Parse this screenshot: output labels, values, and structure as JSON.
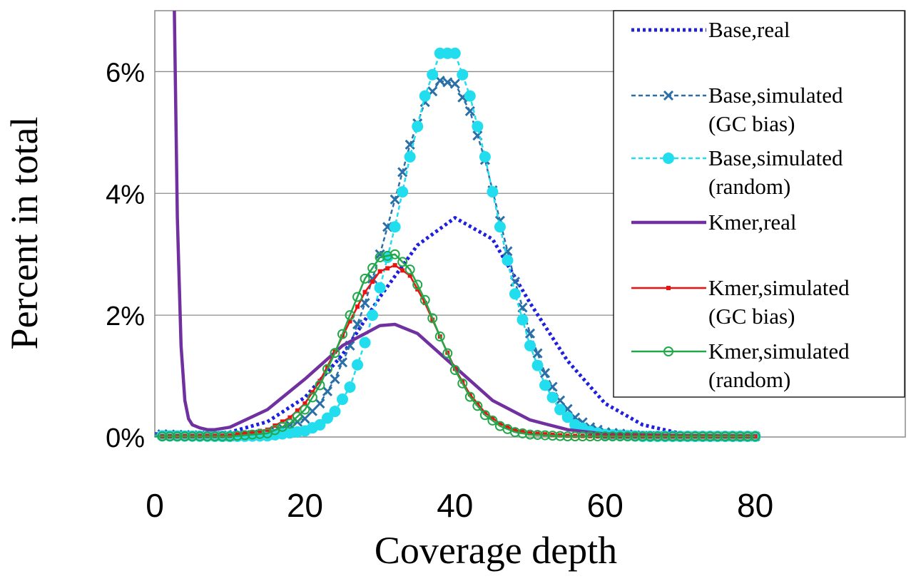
{
  "chart_data": {
    "type": "line",
    "title": "",
    "xlabel": "Coverage depth",
    "ylabel": "Percent in total",
    "xlim": [
      0,
      100
    ],
    "ylim": [
      0,
      7
    ],
    "x_ticks": [
      0,
      20,
      40,
      60,
      80
    ],
    "x_tick_labels": [
      "0",
      "20",
      "40",
      "60",
      "80"
    ],
    "y_ticks": [
      0,
      2,
      4,
      6
    ],
    "y_tick_labels": [
      "0%",
      "2%",
      "4%",
      "6%"
    ],
    "grid": true,
    "legend_position": "top-right",
    "series": [
      {
        "name": "Base,real",
        "legend_lines": [
          "Base,real"
        ],
        "color": "#1f1fe0",
        "style": "dotted",
        "marker": "none",
        "x": [
          0,
          5,
          10,
          15,
          20,
          25,
          30,
          35,
          40,
          45,
          50,
          55,
          60,
          65,
          70,
          75,
          80
        ],
        "y": [
          0.05,
          0.03,
          0.08,
          0.25,
          0.65,
          1.35,
          2.3,
          3.15,
          3.6,
          3.25,
          2.2,
          1.25,
          0.55,
          0.2,
          0.06,
          0.02,
          0.01
        ]
      },
      {
        "name": "Base,simulated (GC bias)",
        "legend_lines": [
          "Base,simulated",
          "(GC bias)"
        ],
        "color": "#2a6fa8",
        "style": "dashed",
        "marker": "x",
        "x": [
          0,
          10,
          15,
          20,
          22,
          24,
          26,
          28,
          30,
          32,
          34,
          36,
          38,
          40,
          42,
          44,
          46,
          48,
          50,
          52,
          54,
          56,
          58,
          60,
          65,
          70,
          80
        ],
        "y": [
          0.05,
          0.01,
          0.05,
          0.3,
          0.55,
          0.95,
          1.5,
          2.2,
          3.0,
          3.9,
          4.8,
          5.5,
          5.85,
          5.8,
          5.35,
          4.55,
          3.55,
          2.55,
          1.7,
          1.05,
          0.6,
          0.32,
          0.16,
          0.08,
          0.02,
          0.01,
          0.01
        ]
      },
      {
        "name": "Base,simulated (random)",
        "legend_lines": [
          "Base,simulated",
          "(random)"
        ],
        "color": "#22ddee",
        "style": "dashed",
        "marker": "circle",
        "x": [
          0,
          10,
          15,
          20,
          22,
          24,
          26,
          28,
          30,
          32,
          34,
          36,
          38,
          40,
          42,
          44,
          46,
          48,
          50,
          52,
          54,
          56,
          58,
          60,
          65,
          70,
          80
        ],
        "y": [
          0.02,
          0.01,
          0.02,
          0.1,
          0.2,
          0.42,
          0.82,
          1.55,
          2.45,
          3.45,
          4.6,
          5.6,
          6.3,
          6.3,
          5.6,
          4.6,
          3.45,
          2.35,
          1.5,
          0.85,
          0.45,
          0.2,
          0.09,
          0.04,
          0.01,
          0.01,
          0.01
        ]
      },
      {
        "name": "Kmer,real",
        "legend_lines": [
          "Kmer,real"
        ],
        "color": "#7030a0",
        "style": "solid",
        "marker": "none",
        "x": [
          2.6,
          3,
          3.5,
          4,
          4.5,
          5,
          6,
          7,
          8,
          10,
          15,
          20,
          25,
          30,
          32,
          35,
          40,
          45,
          50,
          55,
          60,
          70,
          80
        ],
        "y": [
          7.0,
          3.6,
          1.5,
          0.6,
          0.3,
          0.2,
          0.15,
          0.12,
          0.12,
          0.16,
          0.45,
          0.95,
          1.5,
          1.83,
          1.85,
          1.7,
          1.15,
          0.6,
          0.28,
          0.12,
          0.05,
          0.02,
          0.01
        ]
      },
      {
        "name": "Kmer,simulated (GC bias)",
        "legend_lines": [
          "Kmer,simulated",
          "(GC bias)"
        ],
        "color": "#ee1111",
        "style": "solid",
        "marker": "square",
        "x": [
          0,
          10,
          15,
          18,
          20,
          22,
          24,
          26,
          28,
          30,
          32,
          34,
          36,
          38,
          40,
          42,
          44,
          46,
          48,
          50,
          55,
          60,
          70,
          80
        ],
        "y": [
          0.01,
          0.02,
          0.12,
          0.32,
          0.55,
          0.92,
          1.4,
          1.9,
          2.38,
          2.72,
          2.82,
          2.65,
          2.2,
          1.65,
          1.12,
          0.7,
          0.4,
          0.22,
          0.11,
          0.06,
          0.02,
          0.01,
          0.01,
          0.01
        ]
      },
      {
        "name": "Kmer,simulated (random)",
        "legend_lines": [
          "Kmer,simulated",
          "(random)"
        ],
        "color": "#22a84a",
        "style": "solid",
        "marker": "open-circle",
        "x": [
          0,
          10,
          15,
          18,
          20,
          22,
          24,
          26,
          28,
          30,
          32,
          34,
          36,
          38,
          40,
          42,
          44,
          46,
          48,
          50,
          55,
          60,
          70,
          80
        ],
        "y": [
          0.01,
          0.01,
          0.06,
          0.22,
          0.45,
          0.85,
          1.38,
          2.0,
          2.6,
          2.95,
          3.0,
          2.75,
          2.25,
          1.65,
          1.1,
          0.66,
          0.36,
          0.18,
          0.08,
          0.04,
          0.01,
          0.01,
          0.01,
          0.01
        ]
      }
    ]
  }
}
